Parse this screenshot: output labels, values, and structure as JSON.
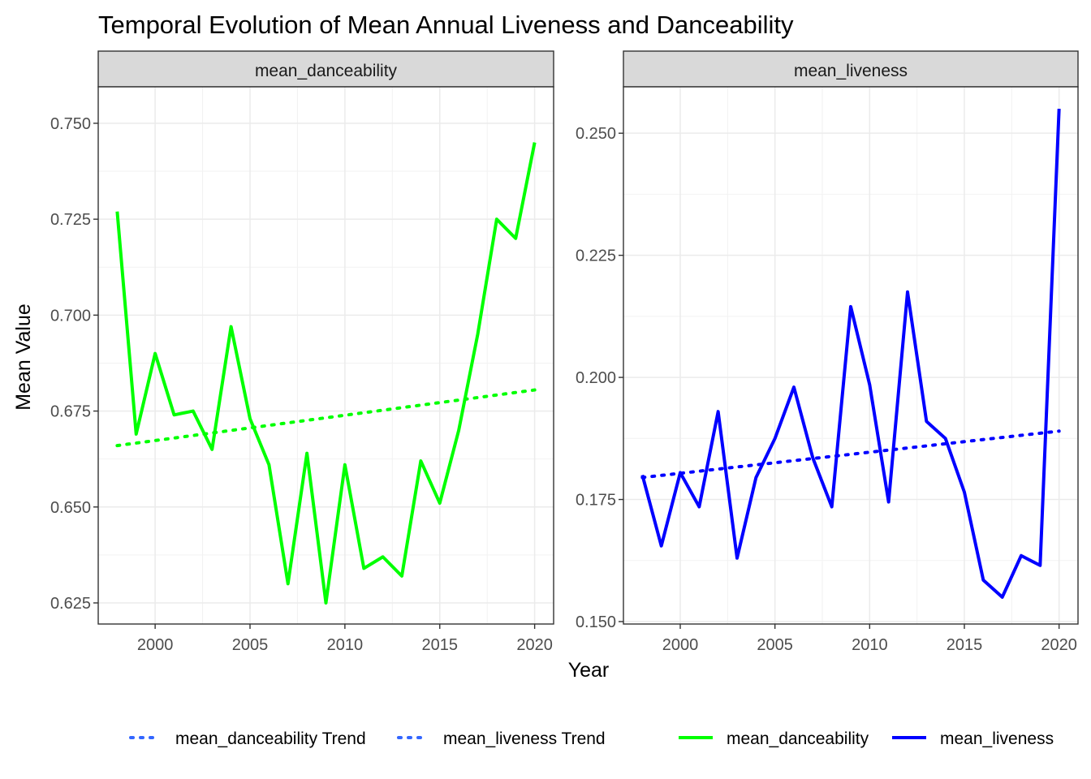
{
  "chart_data": {
    "type": "line",
    "title": "Temporal Evolution of Mean Annual Liveness and Danceability",
    "xlabel": "Year",
    "ylabel": "Mean Value",
    "grid": true,
    "legend_position": "bottom",
    "legend": [
      {
        "label": "mean_danceability Trend",
        "style": "dotted",
        "color": "#3366ff"
      },
      {
        "label": "mean_liveness Trend",
        "style": "dotted",
        "color": "#3366ff"
      },
      {
        "label": "mean_danceability",
        "style": "solid",
        "color": "#00ff00"
      },
      {
        "label": "mean_liveness",
        "style": "solid",
        "color": "#0000ff"
      }
    ],
    "panels": [
      {
        "strip": "mean_danceability",
        "color": "#00ff00",
        "xlim": [
          1997,
          2021
        ],
        "ylim": [
          0.6195,
          0.7595
        ],
        "x_ticks": [
          2000,
          2005,
          2010,
          2015,
          2020
        ],
        "y_ticks": [
          0.625,
          0.65,
          0.675,
          0.7,
          0.725,
          0.75
        ],
        "y_tick_labels": [
          "0.625",
          "0.650",
          "0.675",
          "0.700",
          "0.725",
          "0.750"
        ],
        "x": [
          1998,
          1999,
          2000,
          2001,
          2002,
          2003,
          2004,
          2005,
          2006,
          2007,
          2008,
          2009,
          2010,
          2011,
          2012,
          2013,
          2014,
          2015,
          2016,
          2017,
          2018,
          2019,
          2020
        ],
        "series": [
          {
            "values": [
              0.727,
              0.669,
              0.69,
              0.674,
              0.675,
              0.665,
              0.697,
              0.673,
              0.661,
              0.63,
              0.664,
              0.625,
              0.661,
              0.634,
              0.637,
              0.632,
              0.662,
              0.651,
              0.67,
              0.695,
              0.725,
              0.72,
              0.745
            ]
          }
        ],
        "trend": {
          "x": [
            1998,
            2020
          ],
          "y": [
            0.666,
            0.6805
          ]
        }
      },
      {
        "strip": "mean_liveness",
        "color": "#0000ff",
        "xlim": [
          1997,
          2021
        ],
        "ylim": [
          0.1495,
          0.2595
        ],
        "x_ticks": [
          2000,
          2005,
          2010,
          2015,
          2020
        ],
        "y_ticks": [
          0.15,
          0.175,
          0.2,
          0.225,
          0.25
        ],
        "y_tick_labels": [
          "0.150",
          "0.175",
          "0.200",
          "0.225",
          "0.250"
        ],
        "x": [
          1998,
          1999,
          2000,
          2001,
          2002,
          2003,
          2004,
          2005,
          2006,
          2007,
          2008,
          2009,
          2010,
          2011,
          2012,
          2013,
          2014,
          2015,
          2016,
          2017,
          2018,
          2019,
          2020
        ],
        "series": [
          {
            "values": [
              0.18,
              0.1655,
              0.1805,
              0.1735,
              0.193,
              0.163,
              0.1795,
              0.1875,
              0.198,
              0.1835,
              0.1735,
              0.2145,
              0.1985,
              0.1745,
              0.2175,
              0.191,
              0.1875,
              0.1765,
              0.1585,
              0.155,
              0.1635,
              0.1615,
              0.255
            ]
          }
        ],
        "trend": {
          "x": [
            1998,
            2020
          ],
          "y": [
            0.1795,
            0.189
          ]
        }
      }
    ]
  }
}
